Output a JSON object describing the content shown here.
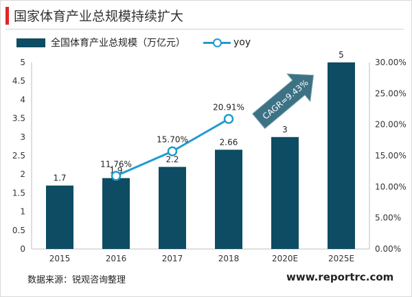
{
  "title": "国家体育产业总规模持续扩大",
  "legend": {
    "bar_label": "全国体育产业总规模（万亿元）",
    "line_label": "yoy"
  },
  "source": "数据来源：锐观咨询整理",
  "website": "www.reportrc.com",
  "colors": {
    "bar": "#0d4c62",
    "line": "#1e9bd0",
    "arrow": "#3d7285",
    "title_accent": "#e0252a"
  },
  "chart_data": {
    "type": "bar",
    "categories": [
      "2015",
      "2016",
      "2017",
      "2018",
      "2020E",
      "2025E"
    ],
    "series": [
      {
        "name": "全国体育产业总规模（万亿元）",
        "type": "bar",
        "axis": "left",
        "values": [
          1.7,
          1.9,
          2.2,
          2.66,
          3,
          5
        ],
        "labels": [
          "1.7",
          "1.9",
          "2.2",
          "2.66",
          "3",
          "5"
        ]
      },
      {
        "name": "yoy",
        "type": "line",
        "axis": "right",
        "values": [
          null,
          11.76,
          15.7,
          20.91,
          null,
          null
        ],
        "labels": [
          "",
          "11.76%",
          "15.70%",
          "20.91%",
          "",
          ""
        ]
      }
    ],
    "y_left": {
      "min": 0,
      "max": 5,
      "step": 0.5,
      "ticks": [
        "0",
        "0.5",
        "1",
        "1.5",
        "2",
        "2.5",
        "3",
        "3.5",
        "4",
        "4.5",
        "5"
      ]
    },
    "y_right": {
      "min": 0,
      "max": 30,
      "step": 5,
      "ticks": [
        "0.00%",
        "5.00%",
        "10.00%",
        "15.00%",
        "20.00%",
        "25.00%",
        "30.00%"
      ]
    },
    "annotation": "CAGR=9.43%",
    "grid": false
  }
}
